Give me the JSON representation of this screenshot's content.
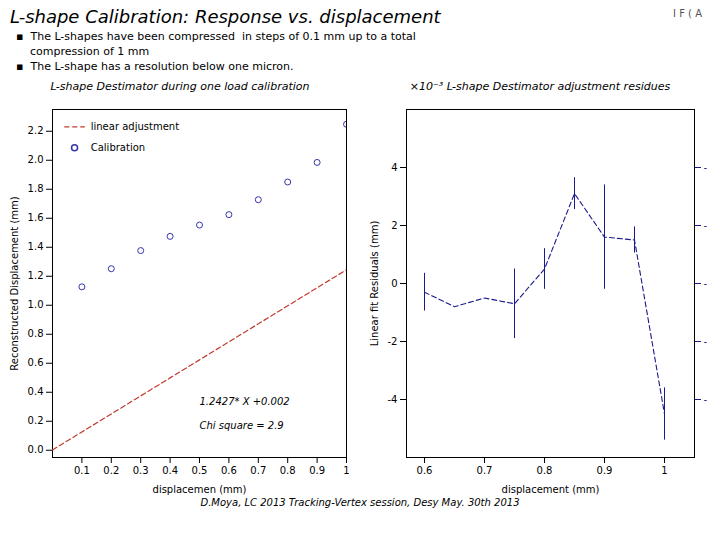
{
  "title": "L-shape Calibration: Response vs. displacement",
  "subtitle": [
    "▪  The L-shapes have been compressed  in steps of 0.1 mm up to a total",
    "    compression of 1 mm",
    "▪  The L-shape has a resolution below one micron."
  ],
  "annotations": [
    "I F ( A"
  ],
  "caption": "D.Moya, LC 2013 Tracking-Vertex  session, Desy  May. 30th  2013",
  "chart_data": [
    {
      "type": "scatter",
      "title": "L-shape Destimator during one load calibration",
      "xlabel": "displacemen (mm)",
      "ylabel": "Reconstructed Displacement (mm)",
      "xlim": [
        0,
        1.0
      ],
      "xticks": [
        0.1,
        0.2,
        0.3,
        0.4,
        0.5,
        0.6,
        0.7,
        0.8,
        0.9,
        1
      ],
      "ylim": [
        -0.05,
        2.35
      ],
      "yticks": [
        {
          "value": 0,
          "label": "0.0"
        },
        0.2,
        0.4,
        0.6,
        0.8,
        {
          "value": 1,
          "label": "1.0"
        },
        1.2,
        1.4,
        1.6,
        1.8,
        {
          "value": 2,
          "label": "2.0"
        },
        2.2
      ],
      "grid": false,
      "legend": "upper left",
      "annotations": [
        "1.2427* X +0.002",
        "Chi square = 2.9"
      ],
      "series": [
        {
          "name": "linear adjustment",
          "type": "line",
          "color": "#c0392b",
          "line_style": "dashed",
          "x": [
            0.0,
            0.1,
            0.2,
            0.3,
            0.4,
            0.5,
            0.6,
            0.7,
            0.8,
            0.9,
            1.0
          ],
          "values": [
            0.002,
            0.12627,
            0.25054,
            0.37481,
            0.49908,
            0.62335,
            0.74762,
            0.87189,
            0.99616,
            1.12043,
            1.2447
          ]
        },
        {
          "name": "Calibration",
          "type": "scatter",
          "color": "#3535aa",
          "marker": "circle",
          "x": [
            0.1,
            0.2,
            0.3,
            0.4,
            0.5,
            0.6,
            0.7,
            0.8,
            0.9,
            1.0
          ],
          "values": [
            1.127,
            1.252,
            1.377,
            1.475,
            1.553,
            1.625,
            1.728,
            1.85,
            1.985,
            2.248
          ]
        }
      ]
    },
    {
      "type": "line",
      "title": "×10⁻³  L-shape Destimator adjustment residues",
      "xlabel": "displacement (mm)",
      "ylabel": "Linear fit Residuals (mm)",
      "x": [
        0.6,
        0.65,
        0.7,
        0.75,
        0.8,
        0.85,
        0.9,
        0.95,
        1.0
      ],
      "values": [
        -0.3,
        -0.8,
        -0.5,
        -0.7,
        0.5,
        3.1,
        1.6,
        1.5,
        -4.5
      ],
      "errors": [
        0.65,
        0.0,
        0.0,
        1.2,
        0.7,
        0.55,
        1.8,
        0.45,
        0.9
      ],
      "color": "#1a1a8c",
      "line_style": "dashed",
      "xlim": [
        0.57,
        1.05
      ],
      "xticks": [
        0.6,
        0.7,
        0.8,
        0.9,
        1
      ],
      "ylim": [
        -6.0,
        6.0
      ],
      "yticks": [
        -4,
        -2,
        0,
        2,
        4
      ],
      "y2lim": [
        -6.0,
        6.0
      ],
      "y2ticks": [
        {
          "value": -4,
          "label": "-"
        },
        {
          "value": -2,
          "label": "-"
        },
        {
          "value": 0,
          "label": "-"
        },
        {
          "value": 2,
          "label": "-"
        },
        {
          "value": 4,
          "label": "-"
        }
      ],
      "grid": false
    }
  ]
}
